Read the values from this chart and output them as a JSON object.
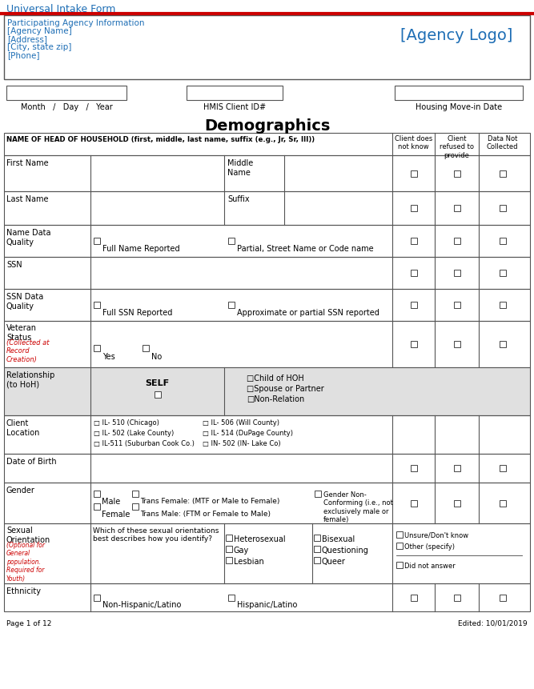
{
  "title": "Universal Intake Form",
  "bg_color": "#ffffff",
  "blue": "#1e6eb5",
  "red": "#cc0000",
  "black": "#000000",
  "border_color": "#555555",
  "gray_bg": "#e0e0e0",
  "agency_info_lines": [
    "Participating Agency Information",
    "[Agency Name]",
    "[Address]",
    "[City, state zip]",
    "[Phone]"
  ],
  "agency_logo_text": "[Agency Logo]",
  "date_label": "Month   /   Day   /   Year",
  "hmis_label": "HMIS Client ID#",
  "housing_label": "Housing Move-in Date",
  "demographics_title": "Demographics",
  "hoh_label": "NAME OF HEAD OF HOUSEHOLD (first, middle, last name, suffix (e.g., Jr, Sr, III))",
  "col_headers": [
    "Client does\nnot know",
    "Client\nrefused to\nprovide",
    "Data Not\nCollected"
  ],
  "page_footer": "Page 1 of 12",
  "edited_footer": "Edited: 10/01/2019"
}
